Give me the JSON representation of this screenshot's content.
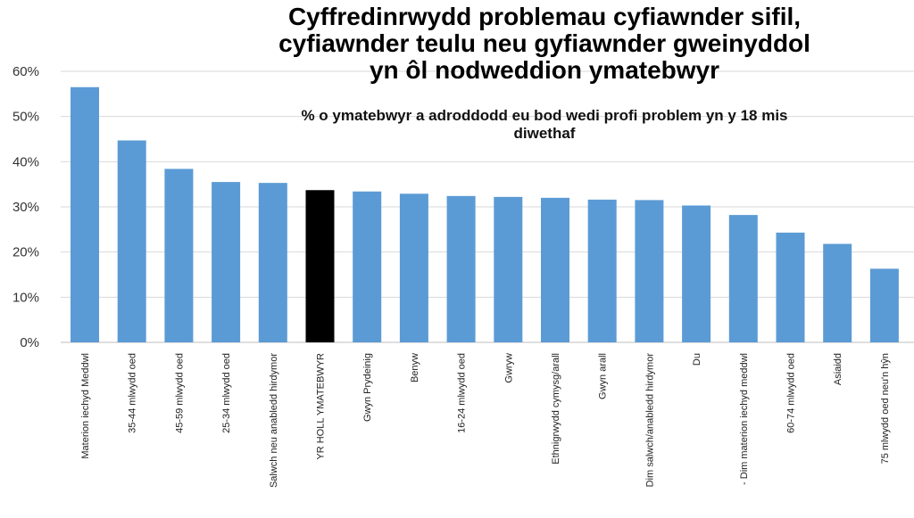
{
  "chart_data": {
    "type": "bar",
    "title": "Cyffredinrwydd problemau cyfiawnder sifil,\ncyfiawnder teulu neu gyfiawnder gweinyddol\nyn ôl nodweddion ymatebwyr",
    "subtitle": "% o ymatebwyr a adroddodd eu bod wedi profi problem yn y 18 mis\ndiwethaf",
    "xlabel": "",
    "ylabel": "",
    "ylim": [
      0,
      60
    ],
    "yticks": [
      0,
      10,
      20,
      30,
      40,
      50,
      60
    ],
    "ytick_labels": [
      "0%",
      "10%",
      "20%",
      "30%",
      "40%",
      "50%",
      "60%"
    ],
    "grid": true,
    "colors": {
      "default": "#5b9bd5",
      "highlight": "#000000",
      "grid": "#d9d9d9"
    },
    "highlight_category": "YR HOLL YMATEBWYR",
    "categories": [
      "Materion iechyd Meddwl",
      "35-44 mlwydd oed",
      "45-59 mlwydd oed",
      "25-34 mlwydd oed",
      "Salwch neu anabledd hirdymor",
      "YR HOLL YMATEBWYR",
      "Gwyn Prydeinig",
      "Benyw",
      "16-24 mlwydd oed",
      "Gwryw",
      "Ethnigrwydd cymysg/arall",
      "Gwyn arall",
      "Dim salwch/anabledd hirdymor",
      "Du",
      "- Dim materion iechyd meddwl",
      "60-74 mlwydd oed",
      "Asiaidd",
      "75 mlwydd oed neu'n hŷn"
    ],
    "values": [
      56.5,
      44.7,
      38.4,
      35.5,
      35.3,
      33.7,
      33.4,
      32.9,
      32.4,
      32.2,
      32.0,
      31.6,
      31.5,
      30.3,
      28.2,
      24.3,
      21.8,
      16.3
    ]
  }
}
